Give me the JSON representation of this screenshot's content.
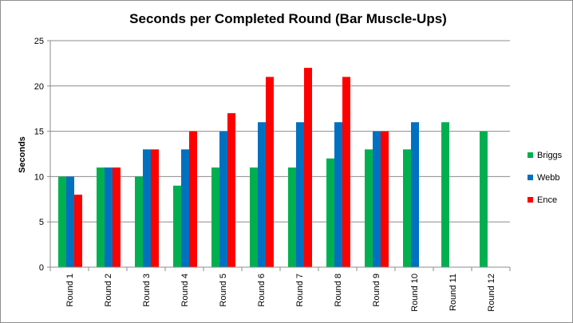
{
  "chart_data": {
    "type": "bar",
    "title": "Seconds per Completed Round (Bar Muscle-Ups)",
    "xlabel": "",
    "ylabel": "Seconds",
    "ylim": [
      0,
      25
    ],
    "yticks": [
      0,
      5,
      10,
      15,
      20,
      25
    ],
    "grid": true,
    "legend_position": "right",
    "categories": [
      "Round 1",
      "Round 2",
      "Round 3",
      "Round 4",
      "Round 5",
      "Round 6",
      "Round 7",
      "Round 8",
      "Round 9",
      "Round 10",
      "Round 11",
      "Round 12"
    ],
    "series": [
      {
        "name": "Briggs",
        "color": "#00b050",
        "values": [
          10,
          11,
          10,
          9,
          11,
          11,
          11,
          12,
          13,
          13,
          16,
          15
        ]
      },
      {
        "name": "Webb",
        "color": "#0070c0",
        "values": [
          10,
          11,
          13,
          13,
          15,
          16,
          16,
          16,
          15,
          16,
          null,
          null
        ]
      },
      {
        "name": "Ence",
        "color": "#ff0000",
        "values": [
          8,
          11,
          13,
          15,
          17,
          21,
          22,
          21,
          15,
          null,
          null,
          null
        ]
      }
    ]
  }
}
